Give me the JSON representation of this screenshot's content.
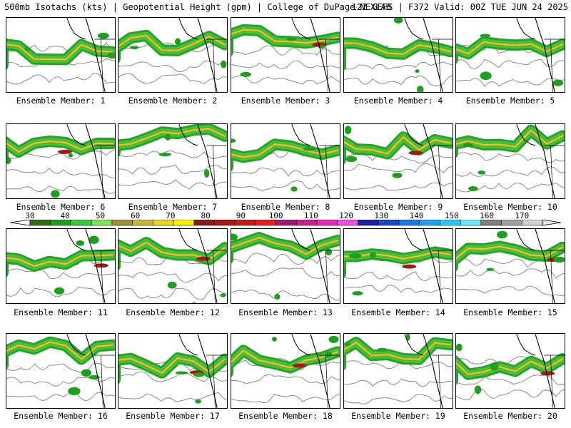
{
  "header": {
    "title_left": "500mb Isotachs (kts) | Geopotential Height (gpm) | College of DuPage NEXLAB",
    "title_right": "12Z GEFS | F372 Valid: 00Z TUE JUN 24 2025"
  },
  "members": [
    {
      "label": "Ensemble Member: 1"
    },
    {
      "label": "Ensemble Member: 2"
    },
    {
      "label": "Ensemble Member: 3"
    },
    {
      "label": "Ensemble Member: 4"
    },
    {
      "label": "Ensemble Member: 5"
    },
    {
      "label": "Ensemble Member: 6"
    },
    {
      "label": "Ensemble Member: 7"
    },
    {
      "label": "Ensemble Member: 8"
    },
    {
      "label": "Ensemble Member: 9"
    },
    {
      "label": "Ensemble Member: 10"
    },
    {
      "label": "Ensemble Member: 11"
    },
    {
      "label": "Ensemble Member: 12"
    },
    {
      "label": "Ensemble Member: 13"
    },
    {
      "label": "Ensemble Member: 14"
    },
    {
      "label": "Ensemble Member: 15"
    },
    {
      "label": "Ensemble Member: 16"
    },
    {
      "label": "Ensemble Member: 17"
    },
    {
      "label": "Ensemble Member: 18"
    },
    {
      "label": "Ensemble Member: 19"
    },
    {
      "label": "Ensemble Member: 20"
    }
  ],
  "colorbar": {
    "labels": [
      "30",
      "40",
      "50",
      "60",
      "70",
      "80",
      "90",
      "100",
      "110",
      "120",
      "130",
      "140",
      "150",
      "160",
      "170"
    ],
    "colors": [
      "#2e6e14",
      "#1f9e1f",
      "#3cc83c",
      "#7fe05a",
      "#a08f3a",
      "#c8b43c",
      "#e6d41e",
      "#f7f000",
      "#8b1a1a",
      "#a81818",
      "#c81a1a",
      "#e61e1e",
      "#a01a6e",
      "#c8208c",
      "#e628b4",
      "#f050e0",
      "#1e1ea0",
      "#1e46c8",
      "#1e78e6",
      "#1ea0f0",
      "#28c8f5",
      "#6ee6ff",
      "#808080",
      "#a0a0a0",
      "#d2d2d2"
    ]
  }
}
